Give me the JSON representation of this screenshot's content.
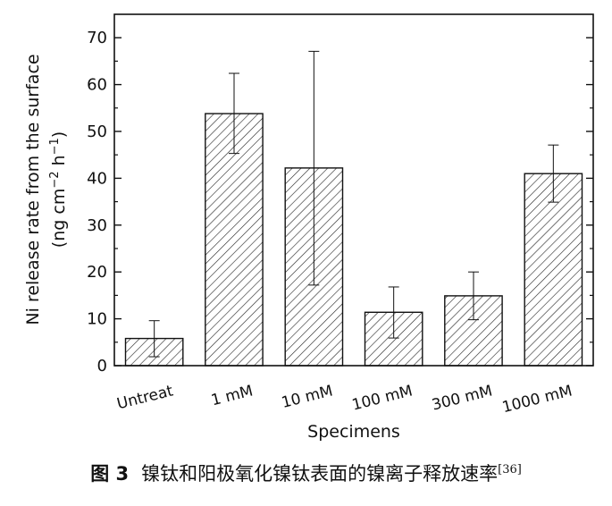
{
  "chart_data": {
    "type": "bar",
    "categories": [
      "Untreat",
      "1 mM",
      "10 mM",
      "100 mM",
      "300 mM",
      "1000 mM"
    ],
    "values": [
      5.8,
      53.8,
      42.2,
      11.4,
      14.9,
      41.0
    ],
    "error_low": [
      1.9,
      45.3,
      17.2,
      5.9,
      9.8,
      34.9
    ],
    "error_high": [
      9.6,
      62.4,
      67.1,
      16.8,
      20.0,
      47.1
    ],
    "xlabel": "Specimens",
    "ylabel_main": "Ni release rate from the surface",
    "ylabel_unit_prefix": "(ng cm",
    "ylabel_unit_exp1": "−2",
    "ylabel_unit_mid": " h",
    "ylabel_unit_exp2": "−1",
    "ylabel_unit_suffix": ")",
    "ylim": [
      0,
      75
    ],
    "yticks": [
      0,
      10,
      20,
      30,
      40,
      50,
      60,
      70
    ],
    "bar_fill": "hatched",
    "grid": false
  },
  "caption": {
    "figure_number": "图 3",
    "text": "镍钛和阳极氧化镍钛表面的镍离子释放速率",
    "ref": "[36]"
  }
}
